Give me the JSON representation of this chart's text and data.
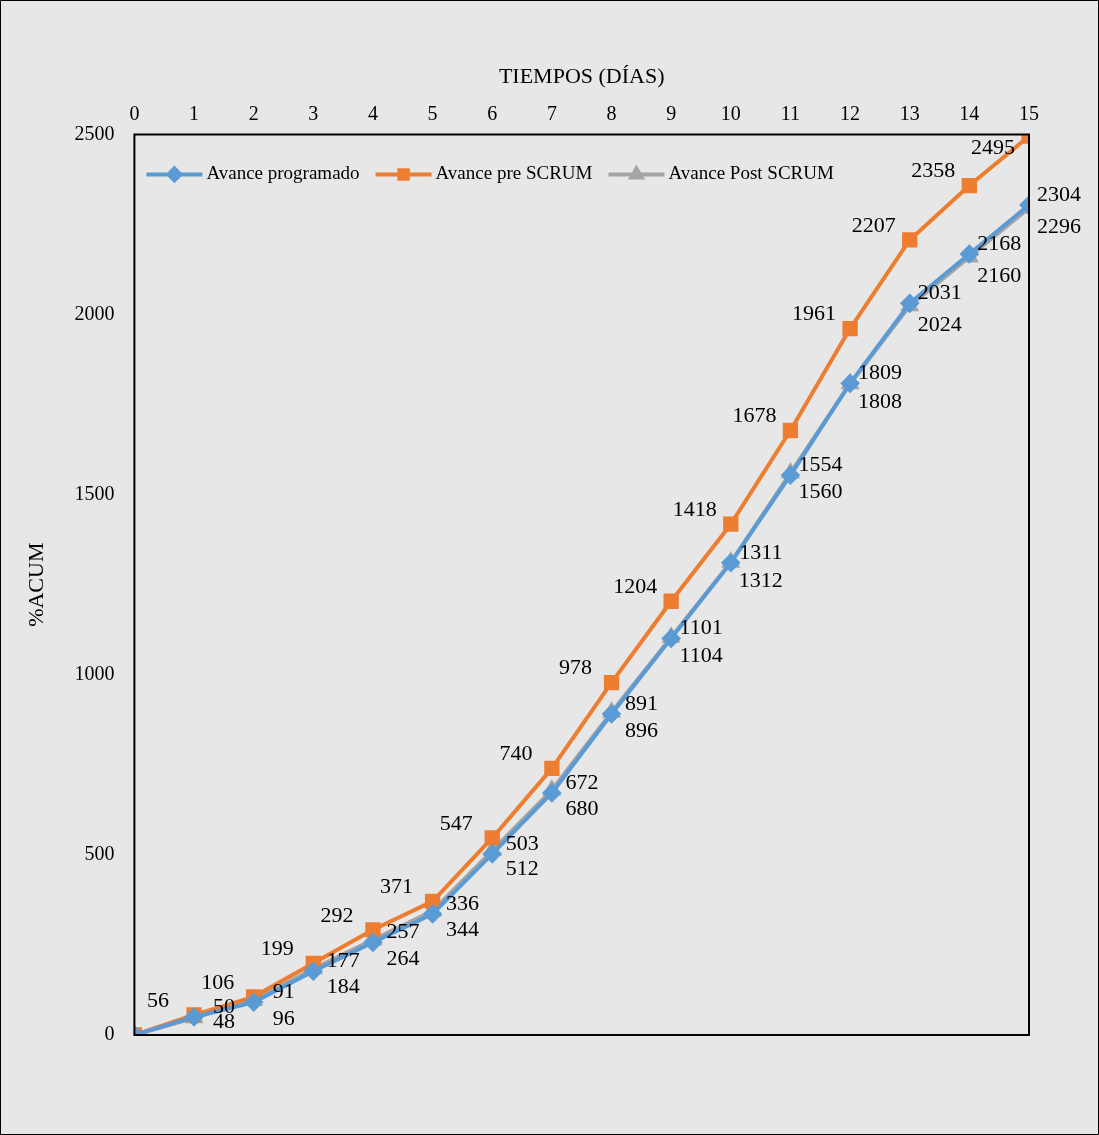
{
  "chart_data": {
    "type": "line",
    "xlabel": "TIEMPOS (DÍAS)",
    "ylabel": "%ACUM",
    "x": [
      0,
      1,
      2,
      3,
      4,
      5,
      6,
      7,
      8,
      9,
      10,
      11,
      12,
      13,
      14,
      15
    ],
    "xlim": [
      0,
      15
    ],
    "xticks": [
      0,
      1,
      2,
      3,
      4,
      5,
      6,
      7,
      8,
      9,
      10,
      11,
      12,
      13,
      14,
      15
    ],
    "ylim": [
      0,
      2500
    ],
    "yticks": [
      0,
      500,
      1000,
      1500,
      2000,
      2500
    ],
    "grid": false,
    "legend": "top left",
    "line_style": "solid",
    "series": [
      {
        "name": "Avance programado",
        "color": "#5b9bd5",
        "marker": "diamond",
        "values": [
          0,
          50,
          91,
          177,
          257,
          336,
          503,
          672,
          891,
          1101,
          1311,
          1554,
          1809,
          2031,
          2168,
          2304
        ],
        "value_labels": [
          null,
          "50",
          "91",
          "177",
          "257",
          "336",
          "503",
          "672",
          "891",
          "1101",
          "1311",
          "1554",
          "1809",
          "2031",
          "2168",
          "2304"
        ]
      },
      {
        "name": "Avance pre SCRUM",
        "color": "#ed7d31",
        "marker": "square",
        "values": [
          0,
          56,
          106,
          199,
          292,
          371,
          547,
          740,
          978,
          1204,
          1418,
          1678,
          1961,
          2207,
          2358,
          2495
        ],
        "value_labels": [
          null,
          "56",
          "106",
          "199",
          "292",
          "371",
          "547",
          "740",
          "978",
          "1204",
          "1418",
          "1678",
          "1961",
          "2207",
          "2358",
          "2495"
        ]
      },
      {
        "name": "Avance Post SCRUM",
        "color": "#a5a5a5",
        "marker": "triangle",
        "values": [
          0,
          48,
          96,
          184,
          264,
          344,
          512,
          680,
          896,
          1104,
          1312,
          1560,
          1808,
          2024,
          2160,
          2296
        ],
        "value_labels": [
          null,
          "48",
          "96",
          "184",
          "264",
          "344",
          "512",
          "680",
          "896",
          "1104",
          "1312",
          "1560",
          "1808",
          "2024",
          "2160",
          "2296"
        ]
      }
    ]
  }
}
